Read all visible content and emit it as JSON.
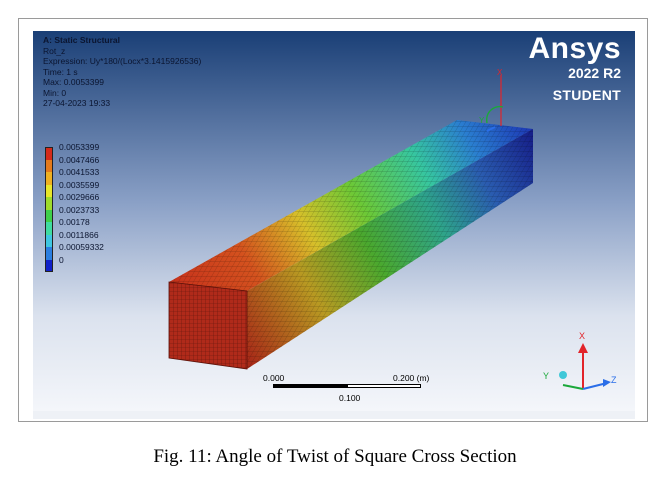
{
  "info": {
    "title": "A: Static Structural",
    "result": "Rot_z",
    "expression": "Expression: Uy*180/(Locx*3.1415926536)",
    "time": "Time: 1 s",
    "max": "Max: 0.0053399",
    "min": "Min: 0",
    "datetime": "27-04-2023 19:33"
  },
  "legend": {
    "items": [
      {
        "label": "0.0053399",
        "color": "#d42a1a"
      },
      {
        "label": "0.0047466",
        "color": "#e47a1a"
      },
      {
        "label": "0.0041533",
        "color": "#efb020"
      },
      {
        "label": "0.0035599",
        "color": "#e8e62a"
      },
      {
        "label": "0.0029666",
        "color": "#9fdc2c"
      },
      {
        "label": "0.0023733",
        "color": "#3ecf4a"
      },
      {
        "label": "0.00178",
        "color": "#3fdca0"
      },
      {
        "label": "0.0011866",
        "color": "#3ec6e0"
      },
      {
        "label": "0.00059332",
        "color": "#2a7ee0"
      },
      {
        "label": "0",
        "color": "#1020c8"
      }
    ]
  },
  "logo": {
    "brand": "Ansys",
    "version": "2022 R2",
    "edition": "STUDENT"
  },
  "scale_bar": {
    "left_label": "0.000",
    "right_label": "0.200 (m)",
    "mid_label": "0.100"
  },
  "triad": {
    "x_label": "X",
    "y_label": "Y",
    "z_label": "Z"
  },
  "caption": "Fig. 11: Angle of Twist of Square Cross Section",
  "colors": {
    "beam_root": "#b8281a",
    "beam_tip": "#1a2ab0",
    "background_top": "#1a3f76",
    "background_bottom": "#f4f6fa"
  }
}
